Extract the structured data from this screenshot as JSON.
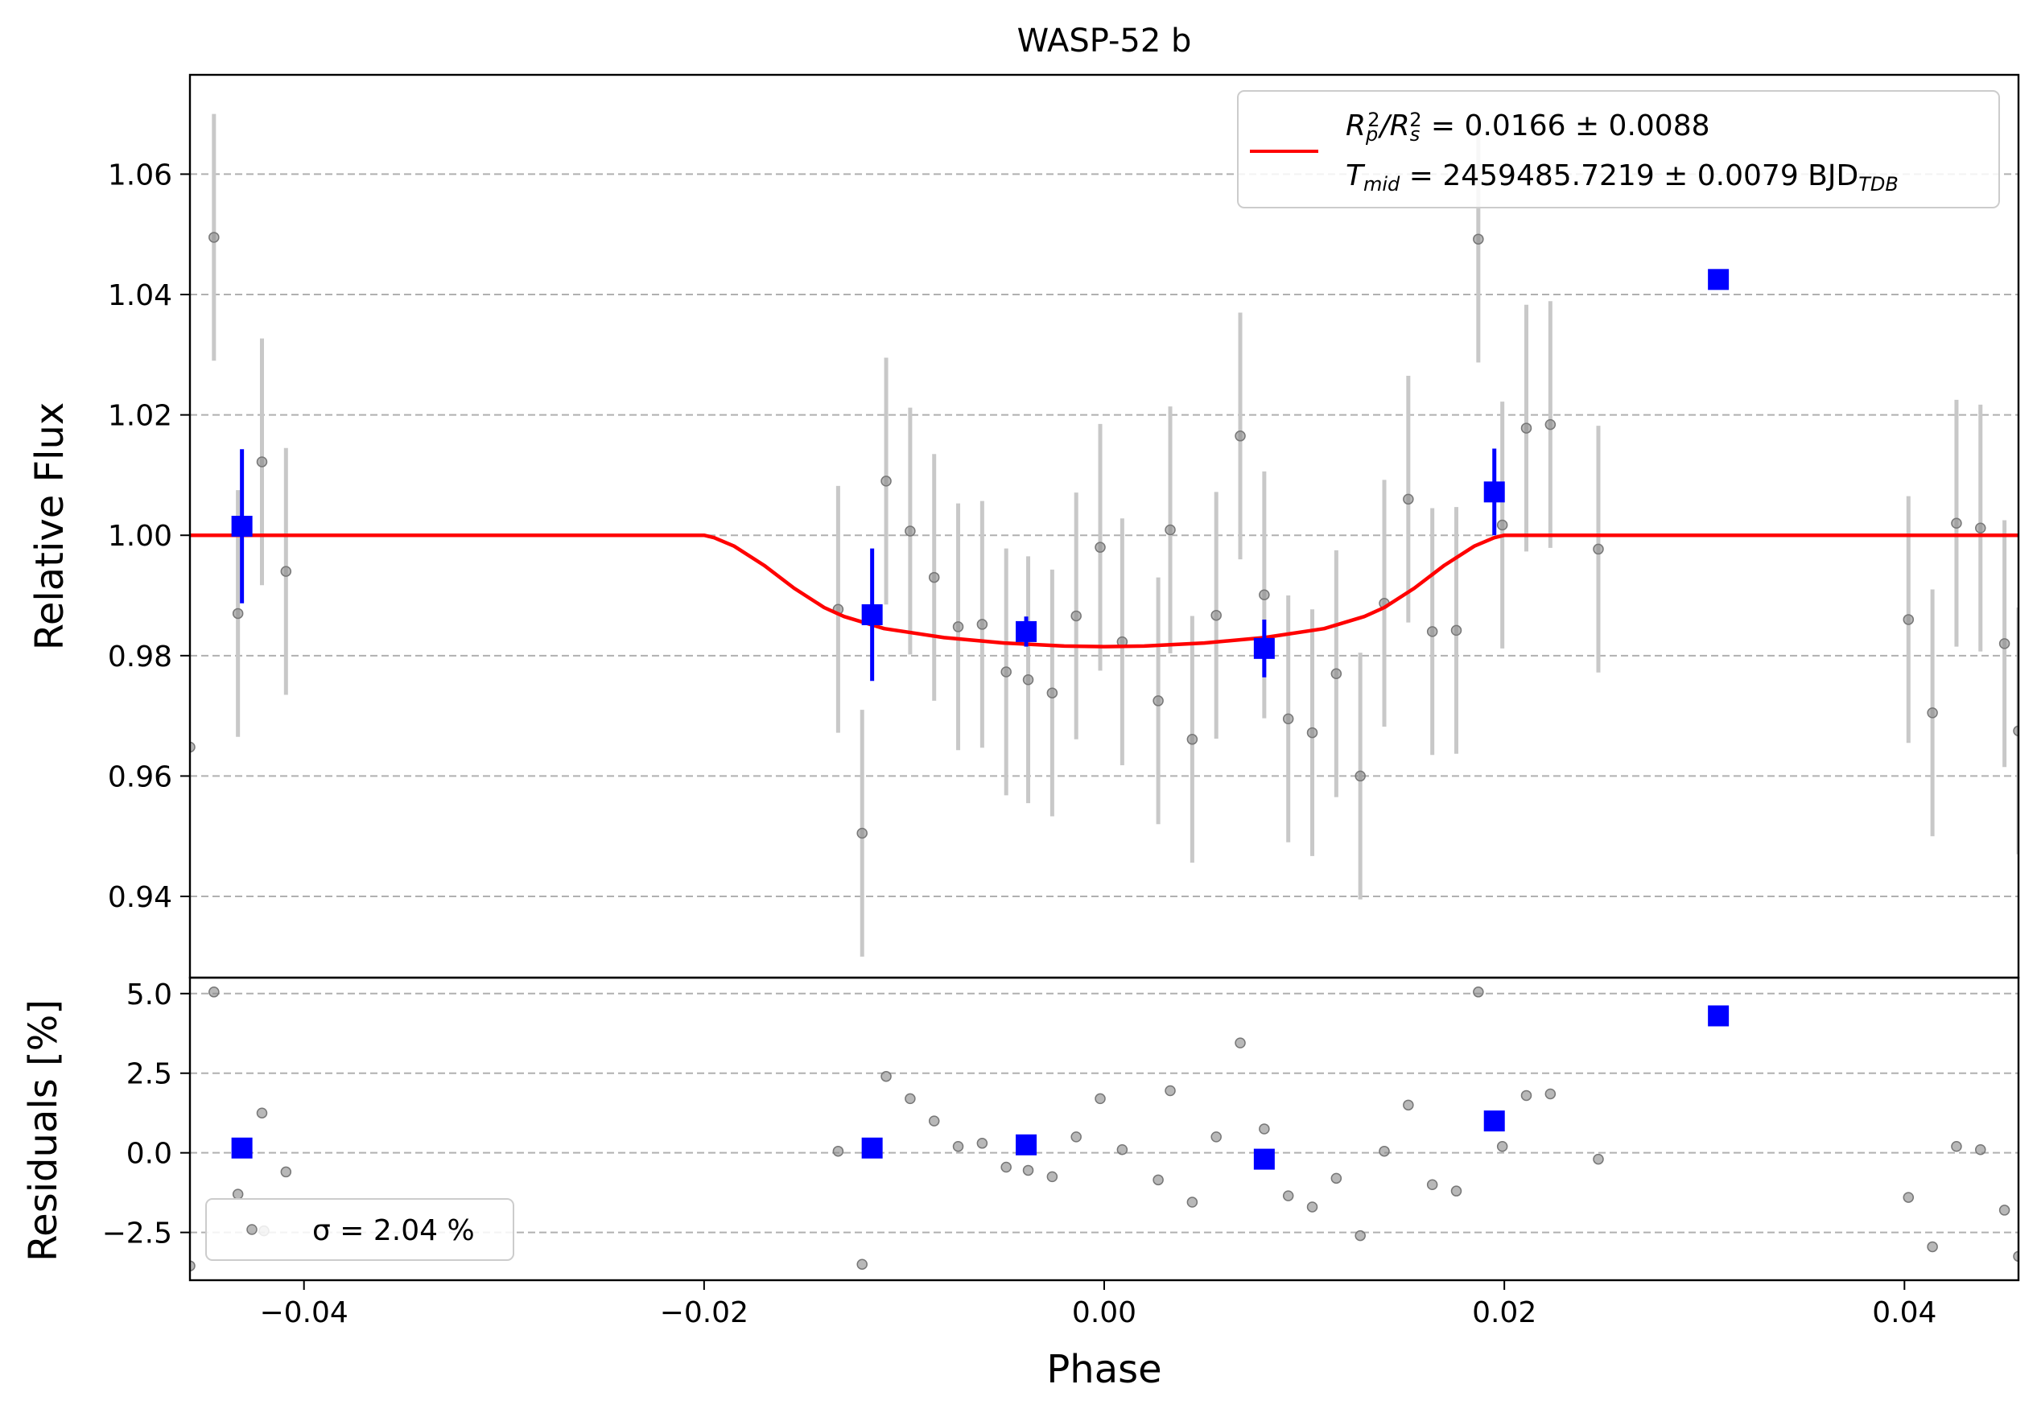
{
  "chart_data": [
    {
      "type": "scatter",
      "panel": "light-curve",
      "title": "WASP-52 b",
      "xlabel": "",
      "ylabel": "Relative Flux",
      "xlim": [
        -0.0457,
        0.0457
      ],
      "ylim": [
        0.9265,
        1.0765
      ],
      "x_ticks": [
        -0.04,
        -0.02,
        0.0,
        0.02,
        0.04
      ],
      "y_ticks": [
        0.94,
        0.96,
        0.98,
        1.0,
        1.02,
        1.04,
        1.06
      ],
      "y_tick_labels": [
        "0.94",
        "0.96",
        "0.98",
        "1.00",
        "1.02",
        "1.04",
        "1.06"
      ],
      "grid": "horizontal dashed",
      "legend": {
        "placement": "upper right",
        "line1": {
          "lhs": "R",
          "sub1": "p",
          "sup1": "2",
          "mid": "/R",
          "sub2": "s",
          "sup2": "2",
          "rhs": " = 0.0166 ± 0.0088"
        },
        "line2": {
          "lhs": "T",
          "sub1": "mid",
          "rhs": " = 2459485.7219 ± 0.0079 BJD",
          "sub2": "TDB"
        }
      },
      "colors": {
        "data": "#888888",
        "errorbar": "#c8c8c8",
        "binned": "#0000ff",
        "model": "#ff0000"
      },
      "series": [
        {
          "kind": "data",
          "points": [
            {
              "x": -0.0457,
              "y": 0.9648,
              "e": 0.0
            },
            {
              "x": -0.0445,
              "y": 1.0495,
              "e": 0.0205
            },
            {
              "x": -0.0433,
              "y": 0.987,
              "e": 0.0205
            },
            {
              "x": -0.0421,
              "y": 1.0122,
              "e": 0.0205
            },
            {
              "x": -0.0409,
              "y": 0.994,
              "e": 0.0205
            },
            {
              "x": -0.0133,
              "y": 0.9877,
              "e": 0.0205
            },
            {
              "x": -0.0121,
              "y": 0.9505,
              "e": 0.0205
            },
            {
              "x": -0.0109,
              "y": 1.009,
              "e": 0.0205
            },
            {
              "x": -0.0097,
              "y": 1.0007,
              "e": 0.0205
            },
            {
              "x": -0.0085,
              "y": 0.993,
              "e": 0.0205
            },
            {
              "x": -0.0073,
              "y": 0.9848,
              "e": 0.0205
            },
            {
              "x": -0.0061,
              "y": 0.9852,
              "e": 0.0205
            },
            {
              "x": -0.0049,
              "y": 0.9773,
              "e": 0.0205
            },
            {
              "x": -0.0038,
              "y": 0.976,
              "e": 0.0205
            },
            {
              "x": -0.0026,
              "y": 0.9738,
              "e": 0.0205
            },
            {
              "x": -0.0014,
              "y": 0.9866,
              "e": 0.0205
            },
            {
              "x": -0.0002,
              "y": 0.998,
              "e": 0.0205
            },
            {
              "x": 0.0009,
              "y": 0.9823,
              "e": 0.0205
            },
            {
              "x": 0.0027,
              "y": 0.9725,
              "e": 0.0205
            },
            {
              "x": 0.0033,
              "y": 1.0009,
              "e": 0.0205
            },
            {
              "x": 0.0044,
              "y": 0.9661,
              "e": 0.0205
            },
            {
              "x": 0.0056,
              "y": 0.9867,
              "e": 0.0205
            },
            {
              "x": 0.0068,
              "y": 1.0165,
              "e": 0.0205
            },
            {
              "x": 0.008,
              "y": 0.9901,
              "e": 0.0205
            },
            {
              "x": 0.0092,
              "y": 0.9695,
              "e": 0.0205
            },
            {
              "x": 0.0104,
              "y": 0.9672,
              "e": 0.0205
            },
            {
              "x": 0.0116,
              "y": 0.977,
              "e": 0.0205
            },
            {
              "x": 0.0128,
              "y": 0.96,
              "e": 0.0205
            },
            {
              "x": 0.014,
              "y": 0.9887,
              "e": 0.0205
            },
            {
              "x": 0.0152,
              "y": 1.006,
              "e": 0.0205
            },
            {
              "x": 0.0164,
              "y": 0.984,
              "e": 0.0205
            },
            {
              "x": 0.0176,
              "y": 0.9842,
              "e": 0.0205
            },
            {
              "x": 0.0187,
              "y": 1.0492,
              "e": 0.0205
            },
            {
              "x": 0.0199,
              "y": 1.0017,
              "e": 0.0205
            },
            {
              "x": 0.0211,
              "y": 1.0178,
              "e": 0.0205
            },
            {
              "x": 0.0223,
              "y": 1.0184,
              "e": 0.0205
            },
            {
              "x": 0.0247,
              "y": 0.9977,
              "e": 0.0205
            },
            {
              "x": 0.0402,
              "y": 0.986,
              "e": 0.0205
            },
            {
              "x": 0.0414,
              "y": 0.9705,
              "e": 0.0205
            },
            {
              "x": 0.0426,
              "y": 1.002,
              "e": 0.0205
            },
            {
              "x": 0.0438,
              "y": 1.0012,
              "e": 0.0205
            },
            {
              "x": 0.045,
              "y": 0.982,
              "e": 0.0205
            },
            {
              "x": 0.0457,
              "y": 0.9675,
              "e": 0.0205
            }
          ]
        },
        {
          "kind": "binned",
          "points": [
            {
              "x": -0.0431,
              "y": 1.0015,
              "e": 0.0128
            },
            {
              "x": -0.0116,
              "y": 0.9868,
              "e": 0.011
            },
            {
              "x": -0.0039,
              "y": 0.984,
              "e": 0.0025
            },
            {
              "x": 0.008,
              "y": 0.9812,
              "e": 0.0048
            },
            {
              "x": 0.0195,
              "y": 1.0072,
              "e": 0.0072
            },
            {
              "x": 0.0307,
              "y": 1.0425,
              "e": 0.0
            }
          ]
        },
        {
          "kind": "model",
          "x": [
            -0.0457,
            -0.02,
            -0.0195,
            -0.0185,
            -0.017,
            -0.0155,
            -0.014,
            -0.013,
            -0.011,
            -0.008,
            -0.005,
            -0.002,
            0.0,
            0.002,
            0.005,
            0.008,
            0.011,
            0.013,
            0.014,
            0.0155,
            0.017,
            0.0185,
            0.0195,
            0.02,
            0.0457
          ],
          "y": [
            1.0,
            1.0,
            0.9996,
            0.9982,
            0.995,
            0.9912,
            0.988,
            0.9865,
            0.9845,
            0.983,
            0.9821,
            0.9816,
            0.9815,
            0.9816,
            0.9821,
            0.983,
            0.9845,
            0.9865,
            0.988,
            0.9912,
            0.995,
            0.9982,
            0.9996,
            1.0,
            1.0
          ]
        }
      ]
    },
    {
      "type": "scatter",
      "panel": "residuals",
      "title": "",
      "xlabel": "Phase",
      "ylabel": "Residuals [%]",
      "xlim": [
        -0.0457,
        0.0457
      ],
      "ylim": [
        -4.0,
        5.5
      ],
      "x_ticks": [
        -0.04,
        -0.02,
        0.0,
        0.02,
        0.04
      ],
      "x_tick_labels": [
        "−0.04",
        "−0.02",
        "0.00",
        "0.02",
        "0.04"
      ],
      "y_ticks": [
        -2.5,
        0.0,
        2.5,
        5.0
      ],
      "y_tick_labels": [
        "−2.5",
        "0.0",
        "2.5",
        "5.0"
      ],
      "grid": "horizontal dashed",
      "legend": {
        "placement": "lower left",
        "sigma_label": "σ = 2.04 %"
      },
      "series": [
        {
          "kind": "data",
          "points": [
            {
              "x": -0.0457,
              "y": -3.55
            },
            {
              "x": -0.0445,
              "y": 5.05
            },
            {
              "x": -0.0433,
              "y": -1.3
            },
            {
              "x": -0.0421,
              "y": 1.25
            },
            {
              "x": -0.0409,
              "y": -0.6
            },
            {
              "x": -0.042,
              "y": -2.45
            },
            {
              "x": -0.0133,
              "y": 0.05
            },
            {
              "x": -0.0121,
              "y": -3.5
            },
            {
              "x": -0.0109,
              "y": 2.4
            },
            {
              "x": -0.0097,
              "y": 1.7
            },
            {
              "x": -0.0085,
              "y": 1.0
            },
            {
              "x": -0.0073,
              "y": 0.2
            },
            {
              "x": -0.0061,
              "y": 0.3
            },
            {
              "x": -0.0049,
              "y": -0.45
            },
            {
              "x": -0.0038,
              "y": -0.55
            },
            {
              "x": -0.0026,
              "y": -0.75
            },
            {
              "x": -0.0014,
              "y": 0.5
            },
            {
              "x": -0.0002,
              "y": 1.7
            },
            {
              "x": 0.0009,
              "y": 0.1
            },
            {
              "x": 0.0027,
              "y": -0.85
            },
            {
              "x": 0.0033,
              "y": 1.95
            },
            {
              "x": 0.0044,
              "y": -1.55
            },
            {
              "x": 0.0056,
              "y": 0.5
            },
            {
              "x": 0.0068,
              "y": 3.45
            },
            {
              "x": 0.008,
              "y": 0.75
            },
            {
              "x": 0.0092,
              "y": -1.35
            },
            {
              "x": 0.0104,
              "y": -1.7
            },
            {
              "x": 0.0116,
              "y": -0.8
            },
            {
              "x": 0.0128,
              "y": -2.6
            },
            {
              "x": 0.014,
              "y": 0.05
            },
            {
              "x": 0.0152,
              "y": 1.5
            },
            {
              "x": 0.0164,
              "y": -1.0
            },
            {
              "x": 0.0176,
              "y": -1.2
            },
            {
              "x": 0.0187,
              "y": 5.05
            },
            {
              "x": 0.0199,
              "y": 0.2
            },
            {
              "x": 0.0211,
              "y": 1.8
            },
            {
              "x": 0.0223,
              "y": 1.85
            },
            {
              "x": 0.0247,
              "y": -0.2
            },
            {
              "x": 0.0402,
              "y": -1.4
            },
            {
              "x": 0.0414,
              "y": -2.95
            },
            {
              "x": 0.0426,
              "y": 0.2
            },
            {
              "x": 0.0438,
              "y": 0.1
            },
            {
              "x": 0.045,
              "y": -1.8
            },
            {
              "x": 0.0457,
              "y": -3.25
            }
          ]
        },
        {
          "kind": "binned",
          "points": [
            {
              "x": -0.0431,
              "y": 0.15
            },
            {
              "x": -0.0116,
              "y": 0.15
            },
            {
              "x": -0.0039,
              "y": 0.25
            },
            {
              "x": 0.008,
              "y": -0.2
            },
            {
              "x": 0.0195,
              "y": 1.0
            },
            {
              "x": 0.0307,
              "y": 4.3
            }
          ]
        }
      ]
    }
  ]
}
